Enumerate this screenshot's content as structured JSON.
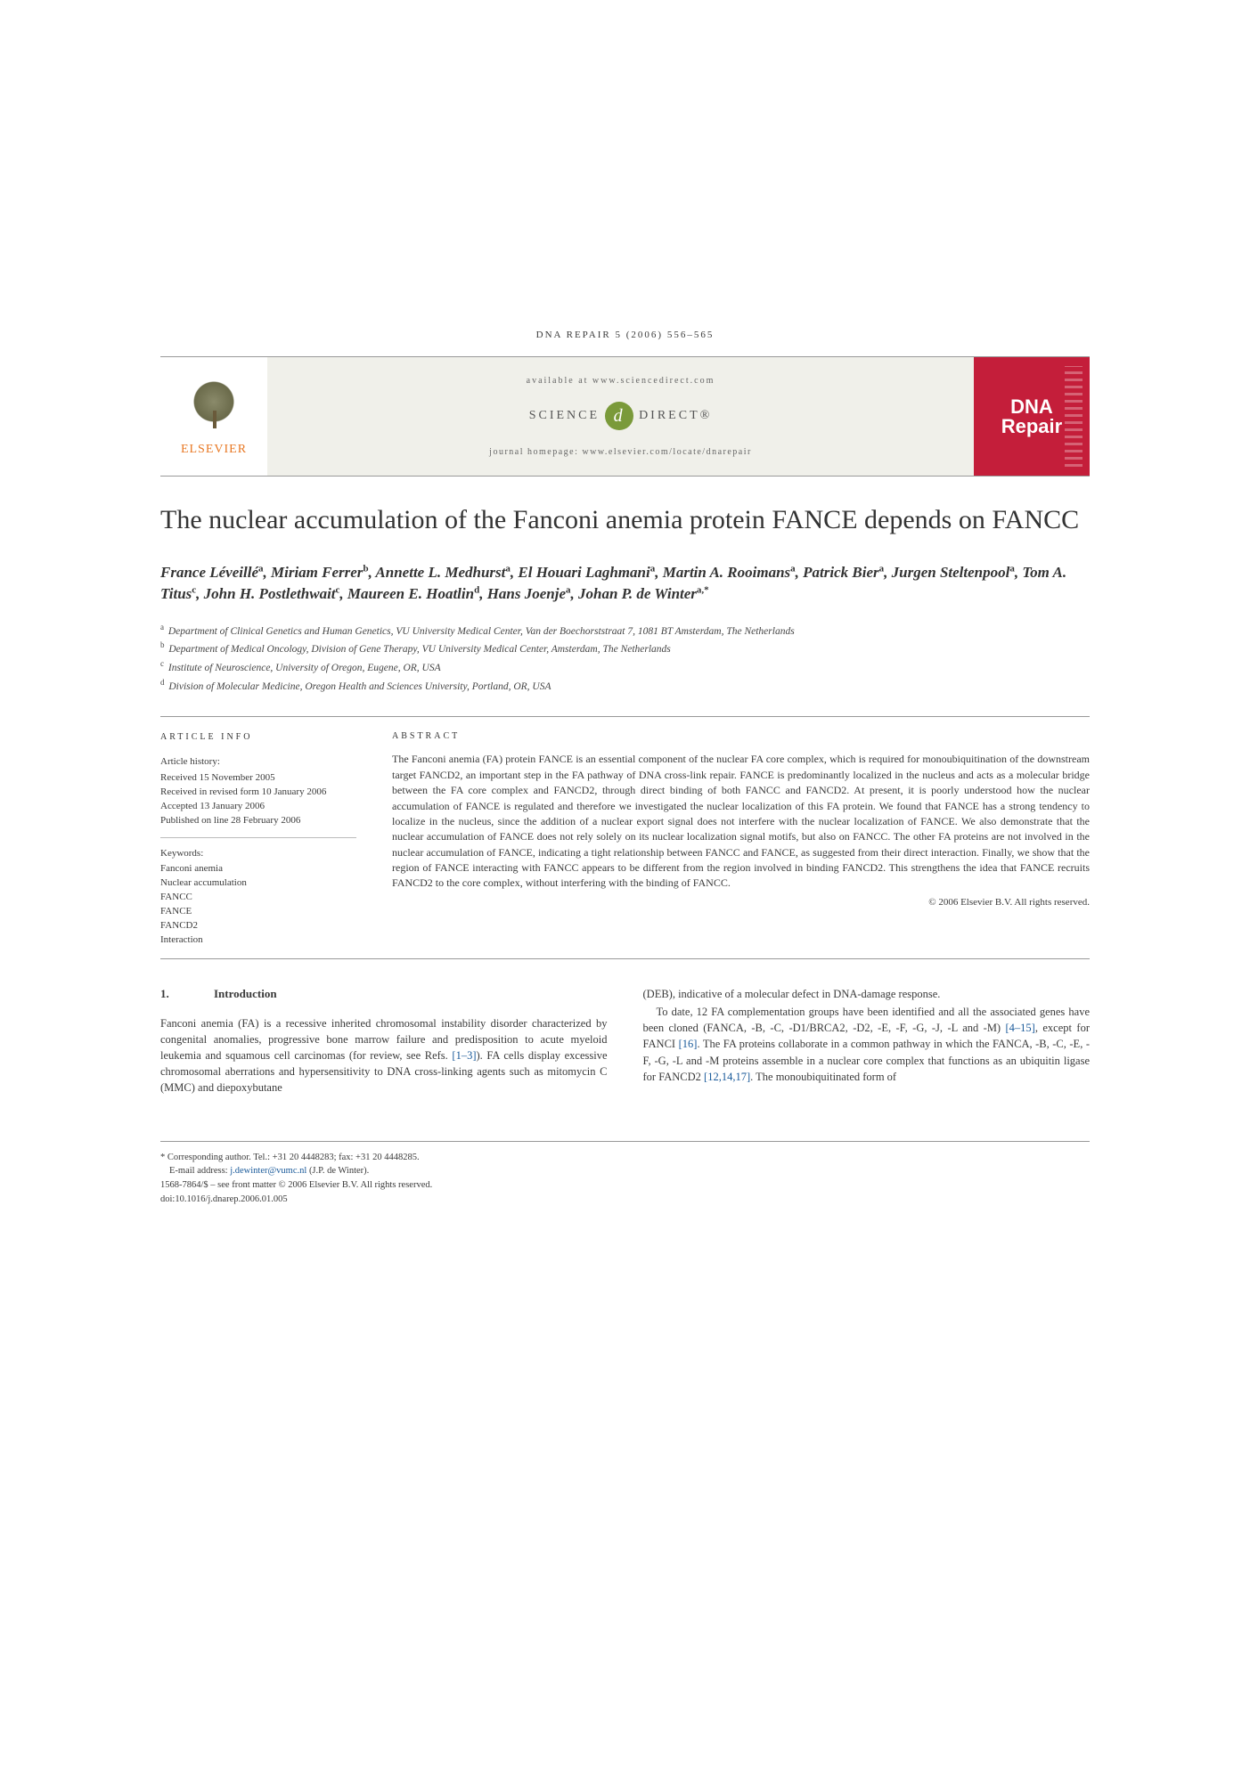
{
  "journal_header": "DNA REPAIR 5 (2006) 556–565",
  "header": {
    "available": "available at www.sciencedirect.com",
    "sd_left": "SCIENCE",
    "sd_right": "DIRECT®",
    "sd_at": "d",
    "homepage": "journal homepage: www.elsevier.com/locate/dnarepair",
    "elsevier": "ELSEVIER",
    "dna1": "DNA",
    "dna2": "Repair"
  },
  "title": "The nuclear accumulation of the Fanconi anemia protein FANCE depends on FANCC",
  "authors_html": "France Léveillé<sup>a</sup>, Miriam Ferrer<sup>b</sup>, Annette L. Medhurst<sup>a</sup>, El Houari Laghmani<sup>a</sup>, Martin A. Rooimans<sup>a</sup>, Patrick Bier<sup>a</sup>, Jurgen Steltenpool<sup>a</sup>, Tom A. Titus<sup>c</sup>, John H. Postlethwait<sup>c</sup>, Maureen E. Hoatlin<sup>d</sup>, Hans Joenje<sup>a</sup>, Johan P. de Winter<sup>a,*</sup>",
  "affiliations": [
    {
      "sup": "a",
      "text": "Department of Clinical Genetics and Human Genetics, VU University Medical Center, Van der Boechorststraat 7, 1081 BT Amsterdam, The Netherlands"
    },
    {
      "sup": "b",
      "text": "Department of Medical Oncology, Division of Gene Therapy, VU University Medical Center, Amsterdam, The Netherlands"
    },
    {
      "sup": "c",
      "text": "Institute of Neuroscience, University of Oregon, Eugene, OR, USA"
    },
    {
      "sup": "d",
      "text": "Division of Molecular Medicine, Oregon Health and Sciences University, Portland, OR, USA"
    }
  ],
  "info": {
    "heading": "ARTICLE INFO",
    "history_label": "Article history:",
    "history": [
      "Received 15 November 2005",
      "Received in revised form 10 January 2006",
      "Accepted 13 January 2006",
      "Published on line 28 February 2006"
    ],
    "keywords_label": "Keywords:",
    "keywords": [
      "Fanconi anemia",
      "Nuclear accumulation",
      "FANCC",
      "FANCE",
      "FANCD2",
      "Interaction"
    ]
  },
  "abstract": {
    "heading": "ABSTRACT",
    "text": "The Fanconi anemia (FA) protein FANCE is an essential component of the nuclear FA core complex, which is required for monoubiquitination of the downstream target FANCD2, an important step in the FA pathway of DNA cross-link repair. FANCE is predominantly localized in the nucleus and acts as a molecular bridge between the FA core complex and FANCD2, through direct binding of both FANCC and FANCD2. At present, it is poorly understood how the nuclear accumulation of FANCE is regulated and therefore we investigated the nuclear localization of this FA protein. We found that FANCE has a strong tendency to localize in the nucleus, since the addition of a nuclear export signal does not interfere with the nuclear localization of FANCE. We also demonstrate that the nuclear accumulation of FANCE does not rely solely on its nuclear localization signal motifs, but also on FANCC. The other FA proteins are not involved in the nuclear accumulation of FANCE, indicating a tight relationship between FANCC and FANCE, as suggested from their direct interaction. Finally, we show that the region of FANCE interacting with FANCC appears to be different from the region involved in binding FANCD2. This strengthens the idea that FANCE recruits FANCD2 to the core complex, without interfering with the binding of FANCC.",
    "copyright": "© 2006 Elsevier B.V. All rights reserved."
  },
  "section1": {
    "num": "1.",
    "title": "Introduction"
  },
  "body": {
    "col1_p1a": "Fanconi anemia (FA) is a recessive inherited chromosomal instability disorder characterized by congenital anomalies, progressive bone marrow failure and predisposition to acute myeloid leukemia and squamous cell carcinomas (for review, see Refs. ",
    "col1_ref1": "[1–3]",
    "col1_p1b": "). FA cells display excessive chromosomal aberrations and hypersensitivity to DNA cross-linking agents such as mitomycin C (MMC) and diepoxybutane",
    "col2_p1": "(DEB), indicative of a molecular defect in DNA-damage response.",
    "col2_p2a": "To date, 12 FA complementation groups have been identified and all the associated genes have been cloned (FANCA, -B, -C, -D1/BRCA2, -D2, -E, -F, -G, -J, -L and -M) ",
    "col2_ref1": "[4–15]",
    "col2_p2b": ", except for FANCI ",
    "col2_ref2": "[16]",
    "col2_p2c": ". The FA proteins collaborate in a common pathway in which the FANCA, -B, -C, -E, -F, -G, -L and -M proteins assemble in a nuclear core complex that functions as an ubiquitin ligase for FANCD2 ",
    "col2_ref3": "[12,14,17]",
    "col2_p2d": ". The monoubiquitinated form of"
  },
  "footer": {
    "corr": "* Corresponding author. Tel.: +31 20 4448283; fax: +31 20 4448285.",
    "email_label": "E-mail address: ",
    "email": "j.dewinter@vumc.nl",
    "email_who": " (J.P. de Winter).",
    "front": "1568-7864/$ – see front matter © 2006 Elsevier B.V. All rights reserved.",
    "doi": "doi:10.1016/j.dnarep.2006.01.005"
  },
  "colors": {
    "elsevier_orange": "#e87722",
    "dna_red": "#c41e3a",
    "sd_green": "#7a9a3a",
    "link_blue": "#1a5a9a",
    "text": "#3a3a3a",
    "header_bg": "#f0f0ea"
  }
}
